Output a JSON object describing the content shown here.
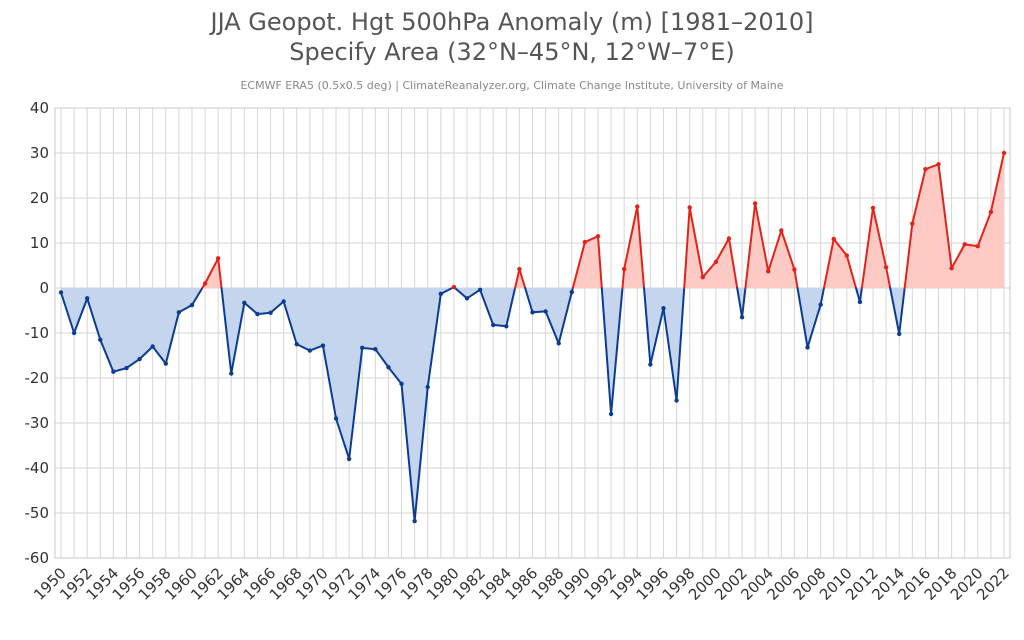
{
  "title_line_1": "JJA Geopot. Hgt 500hPa Anomaly (m) [1981–2010]",
  "title_line_2": "Specify Area (32°N–45°N, 12°W–7°E)",
  "subtitle": "ECMWF ERA5 (0.5x0.5 deg) | ClimateReanalyzer.org, Climate Change Institute, University of Maine",
  "colors": {
    "positive_line": "#e2231a",
    "positive_fill": "#ffc9c4",
    "negative_line": "#0a3d91",
    "negative_fill": "#c6d5ee",
    "grid": "#d6d6d6",
    "axis_text": "#333333"
  },
  "chart_data": {
    "type": "area",
    "title": "JJA Geopot. Hgt 500hPa Anomaly (m) [1981–2010]",
    "subtitle": "Specify Area (32°N–45°N, 12°W–7°E)",
    "xlabel": "",
    "ylabel": "",
    "ylim": [
      -60,
      40
    ],
    "yticks": [
      40,
      30,
      20,
      10,
      0,
      -10,
      -20,
      -30,
      -40,
      -50,
      -60
    ],
    "xlim": [
      1950,
      2022
    ],
    "xticks": [
      1950,
      1952,
      1954,
      1956,
      1958,
      1960,
      1962,
      1964,
      1966,
      1968,
      1970,
      1972,
      1974,
      1976,
      1978,
      1980,
      1982,
      1984,
      1986,
      1988,
      1990,
      1992,
      1994,
      1996,
      1998,
      2000,
      2002,
      2004,
      2006,
      2008,
      2010,
      2012,
      2014,
      2016,
      2018,
      2020,
      2022
    ],
    "grid": true,
    "legend": "none",
    "x": [
      1950,
      1951,
      1952,
      1953,
      1954,
      1955,
      1956,
      1957,
      1958,
      1959,
      1960,
      1961,
      1962,
      1963,
      1964,
      1965,
      1966,
      1967,
      1968,
      1969,
      1970,
      1971,
      1972,
      1973,
      1974,
      1975,
      1976,
      1977,
      1978,
      1979,
      1980,
      1981,
      1982,
      1983,
      1984,
      1985,
      1986,
      1987,
      1988,
      1989,
      1990,
      1991,
      1992,
      1993,
      1994,
      1995,
      1996,
      1997,
      1998,
      1999,
      2000,
      2001,
      2002,
      2003,
      2004,
      2005,
      2006,
      2007,
      2008,
      2009,
      2010,
      2011,
      2012,
      2013,
      2014,
      2015,
      2016,
      2017,
      2018,
      2019,
      2020,
      2021,
      2022
    ],
    "y": [
      -1,
      -10,
      -2.3,
      -11.5,
      -18.6,
      -17.8,
      -15.8,
      -13,
      -16.8,
      -5.4,
      -3.8,
      1,
      6.6,
      -19,
      -3.3,
      -5.8,
      -5.5,
      -3,
      -12.5,
      -13.9,
      -12.8,
      -29,
      -38,
      -13.3,
      -13.6,
      -17.6,
      -21.3,
      -51.8,
      -22,
      -1.3,
      0.2,
      -2.3,
      -0.4,
      -8.2,
      -8.5,
      4.2,
      -5.4,
      -5.2,
      -12.3,
      -0.9,
      10.2,
      11.5,
      -28,
      4.2,
      18.1,
      -17,
      -4.5,
      -25,
      17.9,
      2.4,
      5.8,
      11,
      -6.5,
      18.8,
      3.7,
      12.8,
      4.1,
      -13.2,
      -3.7,
      10.9,
      7.2,
      -3.1,
      17.8,
      4.6,
      -10.2,
      14.3,
      26.4,
      27.5,
      4.4,
      9.7,
      9.3,
      16.9,
      30
    ]
  }
}
